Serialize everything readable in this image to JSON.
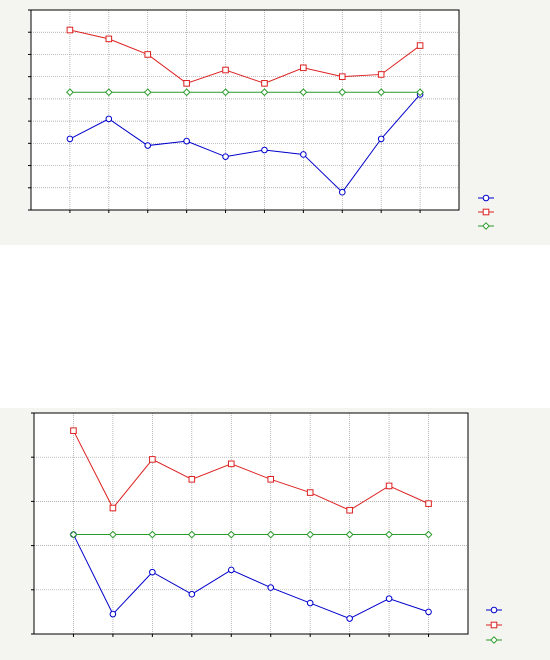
{
  "chart_data": [
    {
      "type": "line",
      "title": "",
      "xlabel": "",
      "ylabel": "",
      "x": [
        1,
        2,
        3,
        4,
        5,
        6,
        7,
        8,
        9,
        10
      ],
      "xlim": [
        0,
        11
      ],
      "ylim": [
        0,
        9
      ],
      "grid": true,
      "legend": "right",
      "series": [
        {
          "color": "#0000cc",
          "marker": "circle",
          "values": [
            3.2,
            4.1,
            2.9,
            3.1,
            2.4,
            2.7,
            2.5,
            0.8,
            3.2,
            5.2
          ]
        },
        {
          "color": "#dd2222",
          "marker": "square",
          "values": [
            8.1,
            7.7,
            7.0,
            5.7,
            6.3,
            5.7,
            6.4,
            6.0,
            6.1,
            7.4
          ]
        },
        {
          "color": "#2a9a2a",
          "marker": "diamond",
          "values": [
            5.3,
            5.3,
            5.3,
            5.3,
            5.3,
            5.3,
            5.3,
            5.3,
            5.3,
            5.3
          ]
        }
      ]
    },
    {
      "type": "line",
      "title": "",
      "xlabel": "",
      "ylabel": "",
      "x": [
        1,
        2,
        3,
        4,
        5,
        6,
        7,
        8,
        9,
        10
      ],
      "xlim": [
        0,
        11
      ],
      "ylim": [
        0,
        10
      ],
      "grid": true,
      "legend": "right",
      "series": [
        {
          "color": "#0000cc",
          "marker": "circle",
          "values": [
            4.5,
            0.9,
            2.8,
            1.8,
            2.9,
            2.1,
            1.4,
            0.7,
            1.6,
            1.0
          ]
        },
        {
          "color": "#dd2222",
          "marker": "square",
          "values": [
            9.2,
            5.7,
            7.9,
            7.0,
            7.7,
            7.0,
            6.4,
            5.6,
            6.7,
            5.9
          ]
        },
        {
          "color": "#2a9a2a",
          "marker": "diamond",
          "values": [
            4.5,
            4.5,
            4.5,
            4.5,
            4.5,
            4.5,
            4.5,
            4.5,
            4.5,
            4.5
          ]
        }
      ]
    }
  ]
}
